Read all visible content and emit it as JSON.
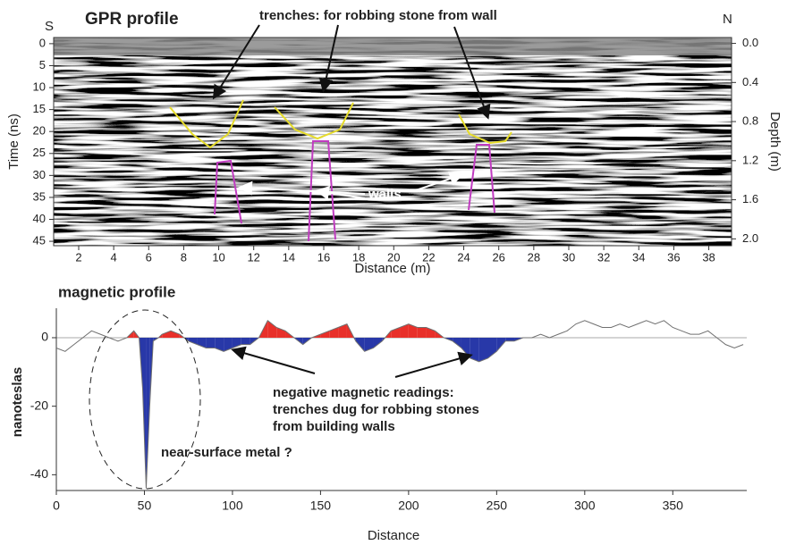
{
  "chart_data": [
    {
      "type": "radargram",
      "title": "GPR profile",
      "x_label": "Distance (m)",
      "y_label": "Time (ns)",
      "y2_label": "Depth (m)",
      "left_end_label": "S",
      "right_end_label": "N",
      "annotations": [
        "trenches: for robbing stone from wall",
        "walls"
      ],
      "xlim": [
        0.57,
        39.3
      ],
      "xticks": [
        2,
        4,
        6,
        8,
        10,
        12,
        14,
        16,
        18,
        20,
        22,
        24,
        26,
        28,
        30,
        32,
        34,
        36,
        38
      ],
      "ylim": [
        46,
        -1.4
      ],
      "yticks": [
        0,
        5,
        10,
        15,
        20,
        25,
        30,
        35,
        40,
        45
      ],
      "y2lim": [
        2.07,
        -0.06
      ],
      "y2ticks": [
        {
          "value": 0,
          "label": "0.0"
        },
        0.4,
        0.8,
        1.2,
        1.6,
        {
          "value": 2,
          "label": "2.0"
        }
      ],
      "trench_color": "#e6dc2a",
      "wall_color": "#c03cc0"
    },
    {
      "type": "line",
      "title": "magnetic profile",
      "x_label": "Distance",
      "y_label": "nanoteslas",
      "annotations": [
        [
          "negative magnetic readings:",
          "trenches dug for robbing stones",
          "from building walls"
        ],
        "near-surface metal ?"
      ],
      "xlim": [
        0,
        392
      ],
      "xticks": [
        0,
        50,
        100,
        150,
        200,
        250,
        300,
        350
      ],
      "ylim": [
        -44.6,
        8.6
      ],
      "yticks": [
        -40,
        -20,
        0
      ],
      "x": [
        0,
        5,
        10,
        15,
        20,
        25,
        30,
        35,
        40,
        44,
        47,
        49,
        51,
        53,
        55,
        58,
        60,
        65,
        70,
        75,
        80,
        85,
        90,
        95,
        100,
        105,
        110,
        115,
        120,
        125,
        130,
        135,
        140,
        145,
        150,
        155,
        160,
        165,
        170,
        175,
        180,
        185,
        190,
        195,
        200,
        205,
        210,
        215,
        220,
        225,
        230,
        235,
        240,
        245,
        250,
        255,
        260,
        265,
        270,
        275,
        280,
        285,
        290,
        295,
        300,
        305,
        310,
        315,
        320,
        325,
        330,
        335,
        340,
        345,
        350,
        355,
        360,
        365,
        370,
        375,
        380,
        385,
        390
      ],
      "series": [
        {
          "color": "#707070",
          "values": [
            -3,
            -4,
            -2,
            0,
            2,
            1,
            0,
            -1,
            0,
            2,
            0,
            -15,
            -44,
            -20,
            -1,
            0,
            1,
            2,
            1,
            -1,
            -2,
            -3,
            -3,
            -4,
            -3,
            -2,
            -2,
            0,
            5,
            3,
            2,
            0,
            -2,
            0,
            1,
            2,
            3,
            4,
            -1,
            -4,
            -3,
            -1,
            2,
            3,
            4,
            3,
            3,
            2,
            0,
            -1,
            -3,
            -6,
            -7,
            -6,
            -4,
            -1,
            -1,
            0,
            0,
            1,
            0,
            1,
            2,
            4,
            5,
            4,
            3,
            3,
            4,
            3,
            4,
            5,
            4,
            5,
            3,
            2,
            1,
            1,
            2,
            0,
            -2,
            -3,
            -2
          ]
        }
      ],
      "positive_color": "#e8302a",
      "negative_color": "#2838a8",
      "fill_range": [
        40,
        265
      ]
    }
  ]
}
